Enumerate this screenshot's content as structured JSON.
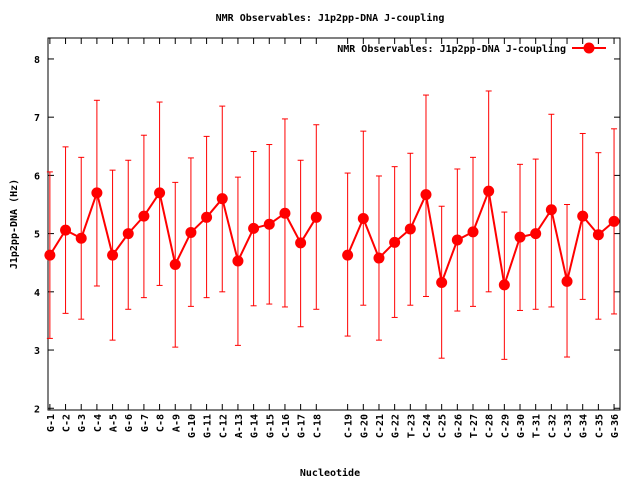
{
  "chart_data": {
    "type": "line",
    "title": "NMR Observables: J1p2pp-DNA J-coupling",
    "xlabel": "Nucleotide",
    "ylabel": "J1p2pp-DNA (Hz)",
    "ylim": [
      1.97,
      8.36
    ],
    "xlim": [
      0.88,
      37.38
    ],
    "yticks": [
      "2",
      "3",
      "4",
      "5",
      "6",
      "7",
      "8"
    ],
    "grid": false,
    "legend_position": "top-right",
    "color": "#ff0000",
    "series": [
      {
        "name": "NMR Observables: J1p2pp-DNA J-coupling",
        "points": [
          {
            "x": 1,
            "label": "G-1",
            "y": 4.63,
            "lo": 3.2,
            "hi": 6.06
          },
          {
            "x": 2,
            "label": "C-2",
            "y": 5.06,
            "lo": 3.63,
            "hi": 6.49
          },
          {
            "x": 3,
            "label": "G-3",
            "y": 4.92,
            "lo": 3.53,
            "hi": 6.31
          },
          {
            "x": 4,
            "label": "C-4",
            "y": 5.7,
            "lo": 4.1,
            "hi": 7.29
          },
          {
            "x": 5,
            "label": "A-5",
            "y": 4.63,
            "lo": 3.17,
            "hi": 6.09
          },
          {
            "x": 6,
            "label": "G-6",
            "y": 5.0,
            "lo": 3.7,
            "hi": 6.26
          },
          {
            "x": 7,
            "label": "G-7",
            "y": 5.3,
            "lo": 3.9,
            "hi": 6.69
          },
          {
            "x": 8,
            "label": "C-8",
            "y": 5.7,
            "lo": 4.11,
            "hi": 7.26
          },
          {
            "x": 9,
            "label": "A-9",
            "y": 4.47,
            "lo": 3.05,
            "hi": 5.88
          },
          {
            "x": 10,
            "label": "G-10",
            "y": 5.02,
            "lo": 3.75,
            "hi": 6.3
          },
          {
            "x": 11,
            "label": "G-11",
            "y": 5.28,
            "lo": 3.9,
            "hi": 6.67
          },
          {
            "x": 12,
            "label": "C-12",
            "y": 5.6,
            "lo": 4.0,
            "hi": 7.19
          },
          {
            "x": 13,
            "label": "A-13",
            "y": 4.53,
            "lo": 3.08,
            "hi": 5.97
          },
          {
            "x": 14,
            "label": "G-14",
            "y": 5.09,
            "lo": 3.76,
            "hi": 6.41
          },
          {
            "x": 15,
            "label": "G-15",
            "y": 5.16,
            "lo": 3.79,
            "hi": 6.53
          },
          {
            "x": 16,
            "label": "C-16",
            "y": 5.35,
            "lo": 3.74,
            "hi": 6.97
          },
          {
            "x": 17,
            "label": "G-17",
            "y": 4.84,
            "lo": 3.4,
            "hi": 6.26
          },
          {
            "x": 18,
            "label": "C-18",
            "y": 5.28,
            "lo": 3.7,
            "hi": 6.87
          },
          {
            "x": 20,
            "label": "C-19",
            "y": 4.63,
            "lo": 3.24,
            "hi": 6.04
          },
          {
            "x": 21,
            "label": "G-20",
            "y": 5.26,
            "lo": 3.77,
            "hi": 6.76
          },
          {
            "x": 22,
            "label": "C-21",
            "y": 4.58,
            "lo": 3.17,
            "hi": 5.99
          },
          {
            "x": 23,
            "label": "G-22",
            "y": 4.85,
            "lo": 3.56,
            "hi": 6.15
          },
          {
            "x": 24,
            "label": "T-23",
            "y": 5.08,
            "lo": 3.77,
            "hi": 6.38
          },
          {
            "x": 25,
            "label": "C-24",
            "y": 5.67,
            "lo": 3.92,
            "hi": 7.38
          },
          {
            "x": 26,
            "label": "C-25",
            "y": 4.16,
            "lo": 2.86,
            "hi": 5.47
          },
          {
            "x": 27,
            "label": "G-26",
            "y": 4.89,
            "lo": 3.67,
            "hi": 6.11
          },
          {
            "x": 28,
            "label": "T-27",
            "y": 5.03,
            "lo": 3.75,
            "hi": 6.31
          },
          {
            "x": 29,
            "label": "C-28",
            "y": 5.73,
            "lo": 4.0,
            "hi": 7.45
          },
          {
            "x": 30,
            "label": "C-29",
            "y": 4.12,
            "lo": 2.84,
            "hi": 5.37
          },
          {
            "x": 31,
            "label": "G-30",
            "y": 4.94,
            "lo": 3.68,
            "hi": 6.19
          },
          {
            "x": 32,
            "label": "T-31",
            "y": 5.0,
            "lo": 3.7,
            "hi": 6.28
          },
          {
            "x": 33,
            "label": "C-32",
            "y": 5.41,
            "lo": 3.74,
            "hi": 7.05
          },
          {
            "x": 34,
            "label": "C-33",
            "y": 4.18,
            "lo": 2.88,
            "hi": 5.5
          },
          {
            "x": 35,
            "label": "G-34",
            "y": 5.3,
            "lo": 3.87,
            "hi": 6.72
          },
          {
            "x": 36,
            "label": "C-35",
            "y": 4.98,
            "lo": 3.53,
            "hi": 6.39
          },
          {
            "x": 37,
            "label": "G-36",
            "y": 5.21,
            "lo": 3.62,
            "hi": 6.8
          }
        ]
      }
    ]
  }
}
